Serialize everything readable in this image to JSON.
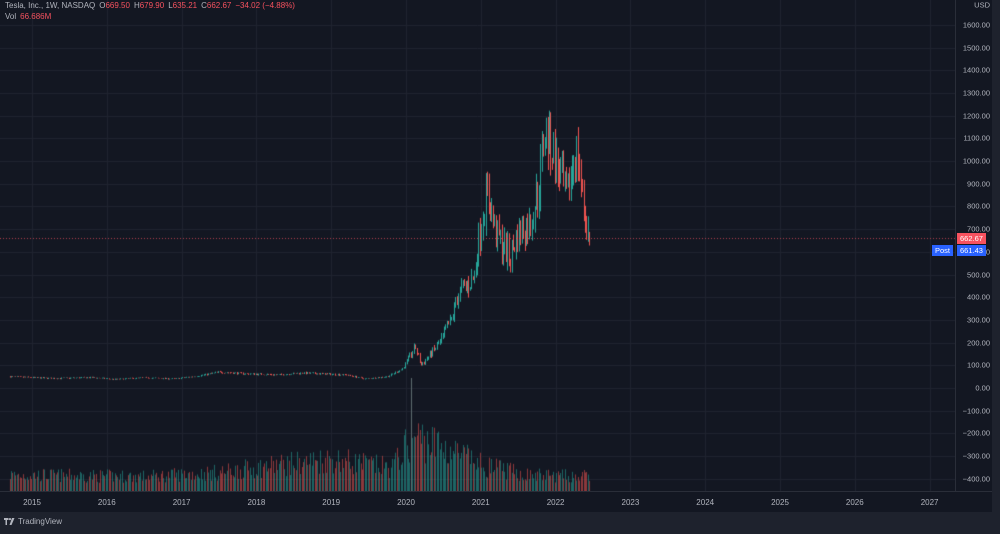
{
  "header": {
    "symbol": "Tesla, Inc., 1W, NASDAQ",
    "open_label": "O",
    "open": "669.50",
    "high_label": "H",
    "high": "679.90",
    "low_label": "L",
    "low": "635.21",
    "close_label": "C",
    "close": "662.67",
    "change": "−34.02 (−4.88%)",
    "vol_label": "Vol",
    "vol": "66.686M"
  },
  "price_axis": {
    "currency": "USD",
    "ticks": [
      "1600.00",
      "1500.00",
      "1400.00",
      "1300.00",
      "1200.00",
      "1100.00",
      "1000.00",
      "900.00",
      "800.00",
      "700.00",
      "600.00",
      "500.00",
      "400.00",
      "300.00",
      "200.00",
      "100.00",
      "0.00",
      "−100.00",
      "−200.00",
      "−300.00",
      "−400.00"
    ],
    "last_price_tag": "662.67",
    "post_label": "Post",
    "post_price_tag": "661.43"
  },
  "time_axis": {
    "ticks": [
      "2015",
      "2016",
      "2017",
      "2018",
      "2019",
      "2020",
      "2021",
      "2022",
      "2023",
      "2024",
      "2025",
      "2026",
      "2027"
    ]
  },
  "footer": {
    "brand": "TradingView"
  },
  "colors": {
    "background": "#131722",
    "up": "#26a69a",
    "down": "#ef5350",
    "last_price": "#f7525f",
    "post_price": "#2962ff",
    "grid": "#1f2330",
    "text": "#b2b5be"
  },
  "chart_data": {
    "type": "candlestick",
    "title": "Tesla, Inc., 1W, NASDAQ",
    "interval": "1W",
    "ylabel": "USD",
    "ylim": [
      -400,
      1600
    ],
    "x_range": [
      "2014-09",
      "2027-06"
    ],
    "grid": true,
    "last_bar": {
      "open": 669.5,
      "high": 679.9,
      "low": 635.21,
      "close": 662.67,
      "change": -34.02,
      "change_pct": -4.88,
      "volume": "66.686M"
    },
    "post_market_price": 661.43,
    "price_path_waypoints": [
      {
        "t": 2014.7,
        "price": 50
      },
      {
        "t": 2015.3,
        "price": 42
      },
      {
        "t": 2015.8,
        "price": 46
      },
      {
        "t": 2016.1,
        "price": 38
      },
      {
        "t": 2016.5,
        "price": 45
      },
      {
        "t": 2016.9,
        "price": 40
      },
      {
        "t": 2017.2,
        "price": 52
      },
      {
        "t": 2017.5,
        "price": 70
      },
      {
        "t": 2017.9,
        "price": 62
      },
      {
        "t": 2018.3,
        "price": 58
      },
      {
        "t": 2018.6,
        "price": 66
      },
      {
        "t": 2018.9,
        "price": 62
      },
      {
        "t": 2019.2,
        "price": 58
      },
      {
        "t": 2019.45,
        "price": 40
      },
      {
        "t": 2019.75,
        "price": 50
      },
      {
        "t": 2019.95,
        "price": 85
      },
      {
        "t": 2020.12,
        "price": 180
      },
      {
        "t": 2020.2,
        "price": 100
      },
      {
        "t": 2020.45,
        "price": 200
      },
      {
        "t": 2020.6,
        "price": 300
      },
      {
        "t": 2020.7,
        "price": 420
      },
      {
        "t": 2020.9,
        "price": 480
      },
      {
        "t": 2021.0,
        "price": 730
      },
      {
        "t": 2021.08,
        "price": 860
      },
      {
        "t": 2021.2,
        "price": 680
      },
      {
        "t": 2021.38,
        "price": 580
      },
      {
        "t": 2021.5,
        "price": 680
      },
      {
        "t": 2021.65,
        "price": 720
      },
      {
        "t": 2021.78,
        "price": 900
      },
      {
        "t": 2021.85,
        "price": 1150
      },
      {
        "t": 2021.95,
        "price": 1050
      },
      {
        "t": 2022.05,
        "price": 940
      },
      {
        "t": 2022.15,
        "price": 820
      },
      {
        "t": 2022.25,
        "price": 1050
      },
      {
        "t": 2022.3,
        "price": 1000
      },
      {
        "t": 2022.38,
        "price": 780
      },
      {
        "t": 2022.45,
        "price": 662.67
      }
    ],
    "volume_profile_waypoints": [
      {
        "t": 2014.7,
        "rel": 0.28
      },
      {
        "t": 2016.5,
        "rel": 0.25
      },
      {
        "t": 2017.5,
        "rel": 0.32
      },
      {
        "t": 2018.3,
        "rel": 0.45
      },
      {
        "t": 2019.0,
        "rel": 0.55
      },
      {
        "t": 2019.8,
        "rel": 0.4
      },
      {
        "t": 2020.1,
        "rel": 0.95
      },
      {
        "t": 2020.6,
        "rel": 0.7
      },
      {
        "t": 2021.0,
        "rel": 0.45
      },
      {
        "t": 2021.6,
        "rel": 0.28
      },
      {
        "t": 2022.45,
        "rel": 0.25
      }
    ]
  }
}
